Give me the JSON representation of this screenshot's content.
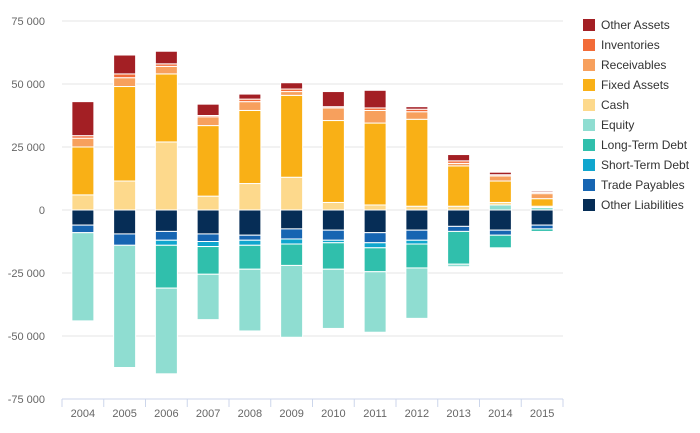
{
  "chart_data": {
    "type": "bar",
    "stacked": true,
    "categories": [
      "2004",
      "2005",
      "2006",
      "2007",
      "2008",
      "2009",
      "2010",
      "2011",
      "2012",
      "2013",
      "2014",
      "2015"
    ],
    "ylim": [
      -75000,
      75000
    ],
    "yticks": [
      75000,
      50000,
      25000,
      0,
      -25000,
      -50000,
      -75000
    ],
    "ytick_labels": [
      "75 000",
      "50 000",
      "25 000",
      "0",
      "-25 000",
      "-50 000",
      "-75 000"
    ],
    "grid": true,
    "legend_position": "right",
    "series": [
      {
        "name": "Other Assets",
        "color": "#A31F24",
        "values": [
          13500,
          7500,
          5000,
          4500,
          2000,
          2500,
          6000,
          7000,
          1000,
          2500,
          1000,
          500
        ]
      },
      {
        "name": "Inventories",
        "color": "#F26B38",
        "values": [
          1000,
          1500,
          1000,
          500,
          1000,
          1000,
          500,
          1000,
          1000,
          1000,
          500,
          500
        ]
      },
      {
        "name": "Receivables",
        "color": "#F7A05D",
        "values": [
          3500,
          3500,
          3000,
          3500,
          3500,
          1500,
          5000,
          5000,
          3000,
          1000,
          2000,
          2000
        ]
      },
      {
        "name": "Fixed Assets",
        "color": "#F9B016",
        "values": [
          19000,
          37500,
          27000,
          28000,
          29000,
          32500,
          32500,
          32500,
          34500,
          16000,
          8500,
          3000
        ]
      },
      {
        "name": "Cash",
        "color": "#FDD98C",
        "values": [
          6000,
          11500,
          27000,
          5500,
          10500,
          13000,
          3000,
          2000,
          1500,
          1500,
          1000,
          500
        ]
      },
      {
        "name": "Equity",
        "color": "#8FDDD1",
        "values": [
          -35000,
          -48500,
          -34000,
          -18000,
          -24500,
          -28500,
          -23500,
          -24000,
          -20000,
          -1000,
          2000,
          1000
        ]
      },
      {
        "name": "Long-Term Debt",
        "color": "#30BFAC",
        "values": [
          0,
          0,
          -17000,
          -11000,
          -9500,
          -8500,
          -10500,
          -9500,
          -9500,
          -13000,
          -5000,
          -1000
        ]
      },
      {
        "name": "Short-Term Debt",
        "color": "#10A6CE",
        "values": [
          0,
          0,
          -2000,
          -2000,
          -2000,
          -2000,
          -1000,
          -2000,
          -1500,
          0,
          0,
          0
        ]
      },
      {
        "name": "Trade Payables",
        "color": "#1665B2",
        "values": [
          -3000,
          -4500,
          -3500,
          -3000,
          -2000,
          -4000,
          -4000,
          -4000,
          -4000,
          -2000,
          -2000,
          -1500
        ]
      },
      {
        "name": "Other Liabilities",
        "color": "#062D56",
        "values": [
          -6000,
          -9500,
          -8500,
          -9500,
          -10000,
          -7500,
          -8000,
          -9000,
          -8000,
          -6500,
          -8000,
          -6000
        ]
      }
    ]
  }
}
